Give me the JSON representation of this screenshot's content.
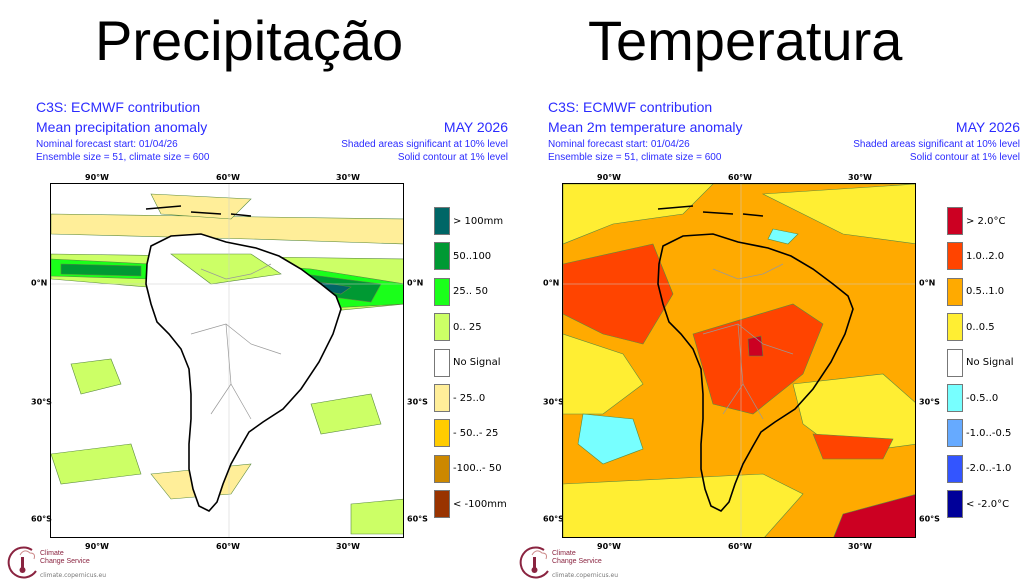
{
  "slide": {
    "left_title": "Precipitação",
    "right_title": "Temperatura"
  },
  "panels": [
    {
      "provider": "C3S: ECMWF contribution",
      "title": "Mean precipitation anomaly",
      "month": "MAY 2026",
      "forecast_start": "Nominal forecast start: 01/04/26",
      "ensemble": "Ensemble size = 51, climate size = 600",
      "significance": "Shaded areas significant at 10% level",
      "contour": "Solid contour at 1% level",
      "lon_labels": [
        "90°W",
        "60°W",
        "30°W"
      ],
      "lat_labels": [
        "0°N",
        "30°S",
        "60°S"
      ],
      "legend": [
        {
          "label": "> 100mm",
          "color": "#006666"
        },
        {
          "label": "50..100",
          "color": "#009933"
        },
        {
          "label": "25.. 50",
          "color": "#1aff1a"
        },
        {
          "label": "0.. 25",
          "color": "#ccff66"
        },
        {
          "label": "No Signal",
          "color": "#ffffff"
        },
        {
          "label": "- 25..0",
          "color": "#ffee99"
        },
        {
          "label": "- 50..- 25",
          "color": "#ffcc00"
        },
        {
          "label": "-100..- 50",
          "color": "#cc8800"
        },
        {
          "label": "< -100mm",
          "color": "#993300"
        }
      ]
    },
    {
      "provider": "C3S: ECMWF contribution",
      "title": "Mean 2m temperature anomaly",
      "month": "MAY 2026",
      "forecast_start": "Nominal forecast start: 01/04/26",
      "ensemble": "Ensemble size = 51, climate size = 600",
      "significance": "Shaded areas significant at 10% level",
      "contour": "Solid contour at 1% level",
      "lon_labels": [
        "90°W",
        "60°W",
        "30°W"
      ],
      "lat_labels": [
        "0°N",
        "30°S",
        "60°S"
      ],
      "legend": [
        {
          "label": "> 2.0°C",
          "color": "#cc0022"
        },
        {
          "label": "1.0..2.0",
          "color": "#ff4400"
        },
        {
          "label": "0.5..1.0",
          "color": "#ffaa00"
        },
        {
          "label": "0..0.5",
          "color": "#ffee33"
        },
        {
          "label": "No Signal",
          "color": "#ffffff"
        },
        {
          "label": "-0.5..0",
          "color": "#77ffff"
        },
        {
          "label": "-1.0..-0.5",
          "color": "#66aaff"
        },
        {
          "label": "-2.0..-1.0",
          "color": "#3355ff"
        },
        {
          "label": "< -2.0°C",
          "color": "#000099"
        }
      ]
    }
  ],
  "logo": {
    "line1": "Climate",
    "line2": "Change Service",
    "url": "climate.copernicus.eu"
  }
}
